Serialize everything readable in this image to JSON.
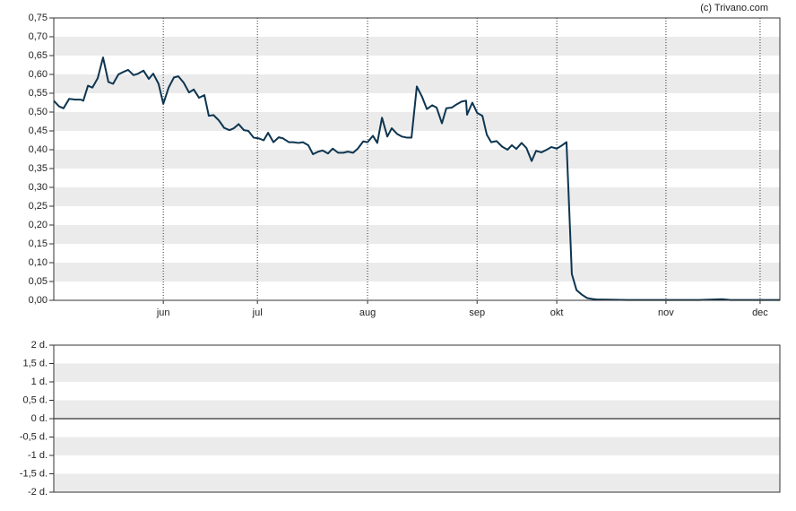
{
  "chart_data": [
    {
      "type": "line",
      "annotation": "(c) Trivano.com",
      "grid": true,
      "bands": true,
      "xlim": [
        0,
        231.4
      ],
      "xticks": [
        {
          "value": 34.9,
          "label": "jun"
        },
        {
          "value": 64.9,
          "label": "jul"
        },
        {
          "value": 100,
          "label": "aug"
        },
        {
          "value": 134.9,
          "label": "sep"
        },
        {
          "value": 160.3,
          "label": "okt"
        },
        {
          "value": 195.1,
          "label": "nov"
        },
        {
          "value": 225.1,
          "label": "dec"
        }
      ],
      "ylim": [
        0,
        0.75
      ],
      "yticks": [
        {
          "value": 0,
          "label": "0,00"
        },
        {
          "value": 0.05,
          "label": "0,05"
        },
        {
          "value": 0.1,
          "label": "0,10"
        },
        {
          "value": 0.15,
          "label": "0,15"
        },
        {
          "value": 0.2,
          "label": "0,20"
        },
        {
          "value": 0.25,
          "label": "0,25"
        },
        {
          "value": 0.3,
          "label": "0,30"
        },
        {
          "value": 0.35,
          "label": "0,35"
        },
        {
          "value": 0.4,
          "label": "0,40"
        },
        {
          "value": 0.45,
          "label": "0,45"
        },
        {
          "value": 0.5,
          "label": "0,50"
        },
        {
          "value": 0.55,
          "label": "0,55"
        },
        {
          "value": 0.6,
          "label": "0,60"
        },
        {
          "value": 0.65,
          "label": "0,65"
        },
        {
          "value": 0.7,
          "label": "0,70"
        },
        {
          "value": 0.75,
          "label": "0,75"
        }
      ],
      "x": [
        0,
        1.7,
        3.1,
        4.9,
        6.9,
        8.6,
        9.4,
        10.9,
        12.3,
        14,
        15.7,
        17.4,
        18.9,
        20.6,
        22.3,
        23.7,
        25.4,
        26.9,
        28.6,
        30.3,
        31.7,
        33.4,
        34.9,
        36.6,
        38.3,
        39.7,
        41.4,
        43.1,
        44.6,
        46.3,
        48,
        49.4,
        50.9,
        52.6,
        54.3,
        56,
        57.4,
        58.9,
        60.6,
        62,
        63.7,
        65.4,
        66.9,
        68.3,
        70,
        71.7,
        73.1,
        74.9,
        76.3,
        78,
        79.4,
        81.1,
        82.6,
        84.3,
        85.7,
        87.4,
        88.9,
        90.6,
        92.3,
        93.7,
        95.4,
        96.9,
        98.6,
        100,
        101.7,
        103.1,
        104.6,
        106.3,
        107.7,
        109.4,
        110.9,
        112.6,
        114,
        115.7,
        117.4,
        118.9,
        120.6,
        122,
        123.7,
        125.1,
        126.9,
        128.3,
        130,
        131.4,
        131.7,
        133.4,
        134.9,
        136.6,
        138,
        139.4,
        141.1,
        142.9,
        144.6,
        146,
        147.4,
        149.1,
        150.6,
        152.3,
        153.7,
        155.4,
        157.1,
        158.6,
        160.3,
        161.7,
        163.4,
        165.1,
        166.6,
        168.3,
        170,
        171.4,
        173.1,
        174.9,
        182.9,
        194.3,
        205.7,
        212.9,
        215.7,
        231.4
      ],
      "series": [
        {
          "color": "#0d3550",
          "values": [
            0.53,
            0.515,
            0.51,
            0.535,
            0.533,
            0.533,
            0.53,
            0.57,
            0.565,
            0.59,
            0.645,
            0.58,
            0.575,
            0.6,
            0.607,
            0.612,
            0.598,
            0.602,
            0.61,
            0.588,
            0.602,
            0.575,
            0.522,
            0.565,
            0.592,
            0.595,
            0.578,
            0.552,
            0.56,
            0.538,
            0.545,
            0.49,
            0.492,
            0.478,
            0.458,
            0.452,
            0.457,
            0.468,
            0.452,
            0.45,
            0.432,
            0.43,
            0.425,
            0.445,
            0.42,
            0.433,
            0.43,
            0.42,
            0.42,
            0.418,
            0.42,
            0.412,
            0.388,
            0.395,
            0.398,
            0.39,
            0.403,
            0.392,
            0.392,
            0.395,
            0.392,
            0.403,
            0.422,
            0.42,
            0.437,
            0.418,
            0.485,
            0.435,
            0.457,
            0.442,
            0.435,
            0.432,
            0.432,
            0.568,
            0.54,
            0.508,
            0.518,
            0.512,
            0.47,
            0.51,
            0.512,
            0.52,
            0.528,
            0.53,
            0.493,
            0.525,
            0.498,
            0.49,
            0.44,
            0.42,
            0.423,
            0.408,
            0.4,
            0.412,
            0.402,
            0.418,
            0.405,
            0.37,
            0.397,
            0.393,
            0.4,
            0.407,
            0.403,
            0.41,
            0.42,
            0.07,
            0.027,
            0.015,
            0.006,
            0.004,
            0.002,
            0.002,
            0.001,
            0.001,
            0.001,
            0.003,
            0.001,
            0.001
          ]
        }
      ]
    },
    {
      "type": "line",
      "bands": true,
      "zero_line": true,
      "ylim": [
        -2,
        2
      ],
      "yticks": [
        {
          "value": -2,
          "label": "-2 d."
        },
        {
          "value": -1.5,
          "label": "-1,5 d."
        },
        {
          "value": -1,
          "label": "-1 d."
        },
        {
          "value": -0.5,
          "label": "-0,5 d."
        },
        {
          "value": 0,
          "label": "0 d."
        },
        {
          "value": 0.5,
          "label": "0,5 d."
        },
        {
          "value": 1,
          "label": "1 d."
        },
        {
          "value": 1.5,
          "label": "1,5 d."
        },
        {
          "value": 2,
          "label": "2 d."
        }
      ],
      "series": []
    }
  ]
}
